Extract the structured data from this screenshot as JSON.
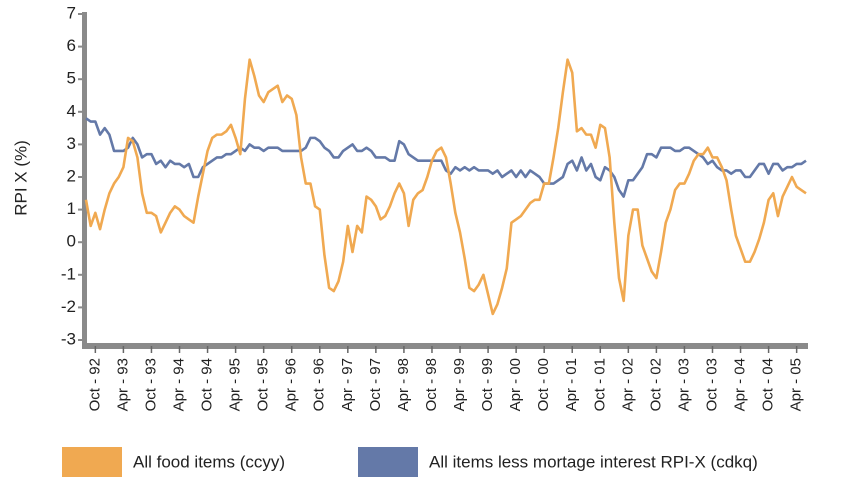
{
  "chart_data": {
    "type": "line",
    "y_label": "RPI X (%)",
    "categories": [
      null,
      null,
      "Oct - 92",
      null,
      null,
      null,
      null,
      null,
      "Apr - 93",
      null,
      null,
      null,
      null,
      null,
      "Oct - 93",
      null,
      null,
      null,
      null,
      null,
      "Apr - 94",
      null,
      null,
      null,
      null,
      null,
      "Oct - 94",
      null,
      null,
      null,
      null,
      null,
      "Apr - 95",
      null,
      null,
      null,
      null,
      null,
      "Oct - 95",
      null,
      null,
      null,
      null,
      null,
      "Apr - 96",
      null,
      null,
      null,
      null,
      null,
      "Oct - 96",
      null,
      null,
      null,
      null,
      null,
      "Apr - 97",
      null,
      null,
      null,
      null,
      null,
      "Oct - 97",
      null,
      null,
      null,
      null,
      null,
      "Apr - 98",
      null,
      null,
      null,
      null,
      null,
      "Oct - 98",
      null,
      null,
      null,
      null,
      null,
      "Apr - 99",
      null,
      null,
      null,
      null,
      null,
      "Oct - 99",
      null,
      null,
      null,
      null,
      null,
      "Apr - 00",
      null,
      null,
      null,
      null,
      null,
      "Oct - 00",
      null,
      null,
      null,
      null,
      null,
      "Apr - 01",
      null,
      null,
      null,
      null,
      null,
      "Oct - 01",
      null,
      null,
      null,
      null,
      null,
      "Apr - 02",
      null,
      null,
      null,
      null,
      null,
      "Oct - 02",
      null,
      null,
      null,
      null,
      null,
      "Apr - 03",
      null,
      null,
      null,
      null,
      null,
      "Oct - 03",
      null,
      null,
      null,
      null,
      null,
      "Apr - 04",
      null,
      null,
      null,
      null,
      null,
      "Oct - 04",
      null,
      null,
      null,
      null,
      null,
      "Apr - 05",
      null,
      null
    ],
    "series": [
      {
        "name": "All food items (ccyy)",
        "color": "#f0a951",
        "values": [
          1.3,
          0.5,
          0.9,
          0.4,
          1.0,
          1.5,
          1.8,
          2.0,
          2.3,
          3.2,
          3.1,
          2.6,
          1.5,
          0.9,
          0.9,
          0.8,
          0.3,
          0.6,
          0.9,
          1.1,
          1.0,
          0.8,
          0.7,
          0.6,
          1.4,
          2.1,
          2.8,
          3.2,
          3.3,
          3.3,
          3.4,
          3.6,
          3.2,
          2.7,
          4.4,
          5.6,
          5.1,
          4.5,
          4.3,
          4.6,
          4.7,
          4.8,
          4.3,
          4.5,
          4.4,
          3.9,
          2.6,
          1.8,
          1.8,
          1.1,
          1.0,
          -0.4,
          -1.4,
          -1.5,
          -1.2,
          -0.6,
          0.5,
          -0.3,
          0.5,
          0.3,
          1.4,
          1.3,
          1.1,
          0.7,
          0.8,
          1.1,
          1.5,
          1.8,
          1.5,
          0.5,
          1.3,
          1.5,
          1.6,
          2.0,
          2.5,
          2.8,
          2.9,
          2.6,
          1.8,
          0.9,
          0.3,
          -0.5,
          -1.4,
          -1.5,
          -1.3,
          -1.0,
          -1.6,
          -2.2,
          -1.9,
          -1.4,
          -0.8,
          0.6,
          0.7,
          0.8,
          1.0,
          1.2,
          1.3,
          1.3,
          1.8,
          1.8,
          2.6,
          3.5,
          4.6,
          5.6,
          5.2,
          3.4,
          3.5,
          3.3,
          3.3,
          2.9,
          3.6,
          3.5,
          2.6,
          0.6,
          -1.1,
          -1.8,
          0.2,
          1.0,
          1.0,
          -0.1,
          -0.5,
          -0.9,
          -1.1,
          -0.3,
          0.6,
          1.0,
          1.6,
          1.8,
          1.8,
          2.1,
          2.5,
          2.7,
          2.7,
          2.9,
          2.6,
          2.6,
          2.3,
          1.9,
          1.0,
          0.2,
          -0.2,
          -0.6,
          -0.6,
          -0.3,
          0.1,
          0.6,
          1.3,
          1.5,
          0.8,
          1.4,
          1.7,
          2.0,
          1.7,
          1.6,
          1.5
        ]
      },
      {
        "name": "All items less mortage interest RPI-X (cdkq)",
        "color": "#6479a8",
        "values": [
          3.8,
          3.7,
          3.7,
          3.3,
          3.5,
          3.3,
          2.8,
          2.8,
          2.8,
          2.9,
          3.2,
          3.0,
          2.6,
          2.7,
          2.7,
          2.4,
          2.5,
          2.3,
          2.5,
          2.4,
          2.4,
          2.3,
          2.4,
          2.0,
          2.0,
          2.3,
          2.4,
          2.5,
          2.6,
          2.6,
          2.7,
          2.7,
          2.8,
          2.9,
          2.8,
          3.0,
          2.9,
          2.9,
          2.8,
          2.9,
          2.9,
          2.9,
          2.8,
          2.8,
          2.8,
          2.8,
          2.8,
          2.9,
          3.2,
          3.2,
          3.1,
          2.9,
          2.8,
          2.6,
          2.6,
          2.8,
          2.9,
          3.0,
          2.8,
          2.8,
          2.9,
          2.8,
          2.6,
          2.6,
          2.6,
          2.5,
          2.5,
          3.1,
          3.0,
          2.7,
          2.6,
          2.5,
          2.5,
          2.5,
          2.5,
          2.5,
          2.5,
          2.2,
          2.1,
          2.3,
          2.2,
          2.3,
          2.2,
          2.3,
          2.2,
          2.2,
          2.2,
          2.1,
          2.2,
          2.0,
          2.1,
          2.2,
          2.0,
          2.2,
          2.0,
          2.2,
          2.1,
          2.0,
          1.8,
          1.8,
          1.8,
          1.9,
          2.0,
          2.4,
          2.5,
          2.2,
          2.6,
          2.2,
          2.4,
          2.0,
          1.9,
          2.3,
          2.2,
          2.0,
          1.6,
          1.4,
          1.9,
          1.9,
          2.1,
          2.3,
          2.7,
          2.7,
          2.6,
          2.9,
          2.9,
          2.9,
          2.8,
          2.8,
          2.9,
          2.9,
          2.8,
          2.7,
          2.6,
          2.4,
          2.5,
          2.3,
          2.2,
          2.2,
          2.1,
          2.2,
          2.2,
          2.0,
          2.0,
          2.2,
          2.4,
          2.4,
          2.1,
          2.4,
          2.4,
          2.2,
          2.3,
          2.3,
          2.4,
          2.4,
          2.5
        ]
      }
    ],
    "ylim": [
      -3,
      7
    ],
    "yticks": [
      -3,
      -2,
      -1,
      0,
      1,
      2,
      3,
      4,
      5,
      6,
      7
    ]
  }
}
